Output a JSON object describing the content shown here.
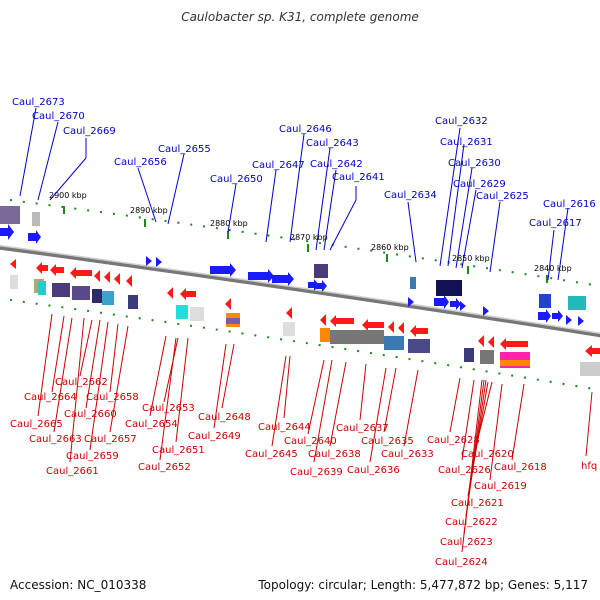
{
  "title": "Caulobacter sp. K31, complete genome",
  "footer": {
    "accession": "Accession: NC_010338",
    "topology": "Topology: circular; Length: 5,477,872 bp; Genes: 5,117"
  },
  "colors": {
    "forward_label": "#0000cc",
    "reverse_label": "#cc0000",
    "forward_gene": "#1a1aff",
    "reverse_gene": "#ff1a1a",
    "backbone": "#888888",
    "tick": "#1a8a1a"
  },
  "scale_labels": [
    "2900 kbp",
    "2890 kbp",
    "2880 kbp",
    "2870 kbp",
    "2860 kbp",
    "2850 kbp",
    "2840 kbp"
  ],
  "forward_genes": [
    "Caul_2673",
    "Caul_2670",
    "Caul_2669",
    "Caul_2656",
    "Caul_2655",
    "Caul_2650",
    "Caul_2647",
    "Caul_2646",
    "Caul_2643",
    "Caul_2642",
    "Caul_2641",
    "Caul_2634",
    "Caul_2632",
    "Caul_2631",
    "Caul_2630",
    "Caul_2629",
    "Caul_2625",
    "Caul_2617",
    "Caul_2616"
  ],
  "reverse_genes": [
    "Caul_2665",
    "Caul_2664",
    "Caul_2663",
    "Caul_2662",
    "Caul_2661",
    "Caul_2660",
    "Caul_2659",
    "Caul_2658",
    "Caul_2657",
    "Caul_2654",
    "Caul_2653",
    "Caul_2652",
    "Caul_2651",
    "Caul_2649",
    "Caul_2648",
    "Caul_2645",
    "Caul_2644",
    "Caul_2640",
    "Caul_2639",
    "Caul_2638",
    "Caul_2637",
    "Caul_2636",
    "Caul_2635",
    "Caul_2633",
    "Caul_2628",
    "Caul_2626",
    "Caul_2624",
    "Caul_2623",
    "Caul_2622",
    "Caul_2621",
    "Caul_2620",
    "Caul_2619",
    "Caul_2618",
    "hfq"
  ]
}
